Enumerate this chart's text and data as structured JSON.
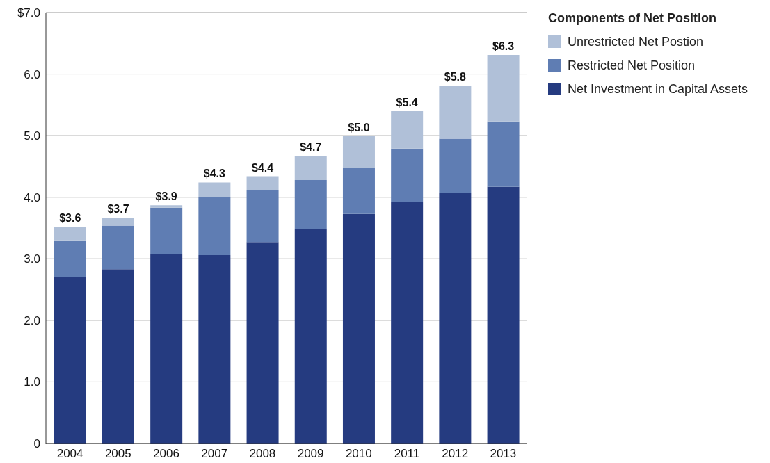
{
  "chart_data": {
    "type": "bar",
    "stacked": true,
    "legend_title": "Components of Net Position",
    "categories": [
      "2004",
      "2005",
      "2006",
      "2007",
      "2008",
      "2009",
      "2010",
      "2011",
      "2012",
      "2013"
    ],
    "series": [
      {
        "name": "Net Investment in Capital Assets",
        "color": "#253b80",
        "values": [
          2.71,
          2.83,
          3.07,
          3.06,
          3.27,
          3.48,
          3.73,
          3.92,
          4.07,
          4.17
        ]
      },
      {
        "name": "Restricted Net Position",
        "color": "#5f7db3",
        "values": [
          0.59,
          0.71,
          0.76,
          0.94,
          0.84,
          0.8,
          0.75,
          0.87,
          0.88,
          1.06
        ]
      },
      {
        "name": "Unrestricted Net Postion",
        "color": "#b0c0d8",
        "values": [
          0.22,
          0.13,
          0.04,
          0.24,
          0.23,
          0.39,
          0.51,
          0.61,
          0.86,
          1.08
        ]
      }
    ],
    "totals": [
      "$3.6",
      "$3.7",
      "$3.9",
      "$4.3",
      "$4.4",
      "$4.7",
      "$5.0",
      "$5.4",
      "$5.8",
      "$6.3"
    ],
    "ylim": [
      0,
      7
    ],
    "yticks": [
      0,
      {
        "value": 1,
        "label": "1.0"
      },
      {
        "value": 2,
        "label": "2.0"
      },
      {
        "value": 3,
        "label": "3.0"
      },
      {
        "value": 4,
        "label": "4.0"
      },
      {
        "value": 5,
        "label": "5.0"
      },
      {
        "value": 6,
        "label": "6.0"
      },
      {
        "value": 7,
        "label": "$7.0"
      }
    ],
    "grid": "y",
    "legend": "top right"
  }
}
